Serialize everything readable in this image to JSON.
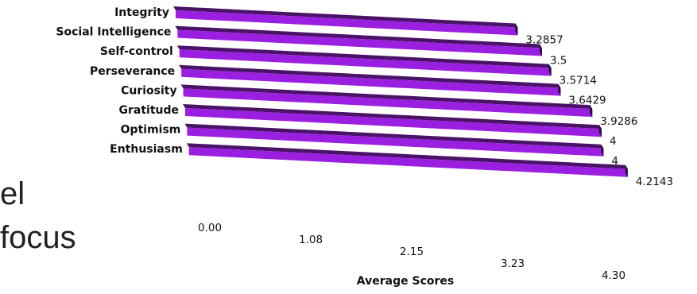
{
  "slide_text": [
    "el",
    "focus"
  ],
  "chart_data": {
    "type": "bar",
    "orientation": "horizontal",
    "style": "3d",
    "bar_color": "#9b1fe0",
    "bar_top_color": "#4a1368",
    "categories": [
      "Integrity",
      "Social Intelligence",
      "Self-control",
      "Perseverance",
      "Curiosity",
      "Gratitude",
      "Optimism",
      "Enthusiasm"
    ],
    "values": [
      3.2857,
      3.5,
      3.5714,
      3.6429,
      3.9286,
      4,
      4,
      4.2143
    ],
    "value_labels": [
      "3.2857",
      "3.5",
      "3.5714",
      "3.6429",
      "3.9286",
      "4",
      "4",
      "4.2143"
    ],
    "xlabel": "Average Scores",
    "xlim": [
      0,
      4.3
    ],
    "ticks": [
      "0.00",
      "1.08",
      "2.15",
      "3.23",
      "4.30"
    ],
    "grid": false,
    "legend": "none"
  }
}
